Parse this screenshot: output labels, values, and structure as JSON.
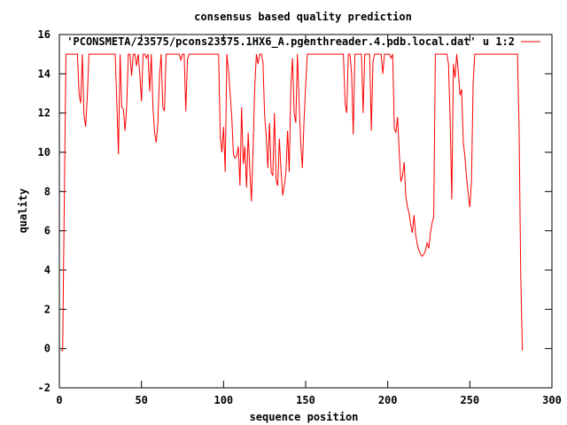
{
  "chart_data": {
    "type": "line",
    "title": "consensus based quality prediction",
    "xlabel": "sequence position",
    "ylabel": "quality",
    "xlim": [
      0,
      300
    ],
    "ylim": [
      -2,
      16
    ],
    "x_ticks": [
      "0",
      "50",
      "100",
      "150",
      "200",
      "250",
      "300"
    ],
    "y_ticks": [
      "-2",
      "0",
      "2",
      "4",
      "6",
      "8",
      "10",
      "12",
      "14",
      "16"
    ],
    "grid": false,
    "legend_position": "top-right",
    "series": [
      {
        "name": "'PCONSMETA/23575/pcons23575.1HX6_A.pgenthreader.4.pdb.local.dat' u 1:2",
        "color": "#ff0000",
        "points": [
          [
            1,
            -0.1
          ],
          [
            2,
            -0.1
          ],
          [
            3,
            7.5
          ],
          [
            4,
            15
          ],
          [
            5,
            15
          ],
          [
            6,
            15
          ],
          [
            7,
            15
          ],
          [
            8,
            15
          ],
          [
            9,
            15
          ],
          [
            10,
            15
          ],
          [
            11,
            15
          ],
          [
            12,
            13.0
          ],
          [
            13,
            12.5
          ],
          [
            14,
            15
          ],
          [
            15,
            11.9
          ],
          [
            16,
            11.3
          ],
          [
            17,
            12.8
          ],
          [
            18,
            15
          ],
          [
            19,
            15
          ],
          [
            20,
            15
          ],
          [
            21,
            15
          ],
          [
            22,
            15
          ],
          [
            23,
            15
          ],
          [
            24,
            15
          ],
          [
            25,
            15
          ],
          [
            26,
            15
          ],
          [
            27,
            15
          ],
          [
            28,
            15
          ],
          [
            29,
            15
          ],
          [
            30,
            15
          ],
          [
            31,
            15
          ],
          [
            32,
            15
          ],
          [
            33,
            15
          ],
          [
            34,
            15
          ],
          [
            35,
            12.5
          ],
          [
            36,
            9.9
          ],
          [
            37,
            15
          ],
          [
            38,
            12.3
          ],
          [
            39,
            12.2
          ],
          [
            40,
            11.1
          ],
          [
            41,
            12.3
          ],
          [
            42,
            15
          ],
          [
            43,
            15
          ],
          [
            44,
            13.9
          ],
          [
            45,
            15
          ],
          [
            46,
            15
          ],
          [
            47,
            14.4
          ],
          [
            48,
            15
          ],
          [
            49,
            14.0
          ],
          [
            50,
            12.6
          ],
          [
            51,
            15
          ],
          [
            52,
            15
          ],
          [
            53,
            14.8
          ],
          [
            54,
            15
          ],
          [
            55,
            13.1
          ],
          [
            56,
            15
          ],
          [
            57,
            12.3
          ],
          [
            58,
            11.0
          ],
          [
            59,
            10.5
          ],
          [
            60,
            11.5
          ],
          [
            61,
            13.9
          ],
          [
            62,
            15
          ],
          [
            63,
            12.3
          ],
          [
            64,
            12.1
          ],
          [
            65,
            15
          ],
          [
            66,
            15
          ],
          [
            67,
            15
          ],
          [
            68,
            15
          ],
          [
            69,
            15
          ],
          [
            70,
            15
          ],
          [
            71,
            15
          ],
          [
            72,
            15
          ],
          [
            73,
            15
          ],
          [
            74,
            14.7
          ],
          [
            75,
            15
          ],
          [
            76,
            15
          ],
          [
            77,
            12.1
          ],
          [
            78,
            14.7
          ],
          [
            79,
            15
          ],
          [
            80,
            15
          ],
          [
            81,
            15
          ],
          [
            82,
            15
          ],
          [
            83,
            15
          ],
          [
            84,
            15
          ],
          [
            85,
            15
          ],
          [
            86,
            15
          ],
          [
            87,
            15
          ],
          [
            88,
            15
          ],
          [
            89,
            15
          ],
          [
            90,
            15
          ],
          [
            91,
            15
          ],
          [
            92,
            15
          ],
          [
            93,
            15
          ],
          [
            94,
            15
          ],
          [
            95,
            15
          ],
          [
            96,
            15
          ],
          [
            97,
            15
          ],
          [
            98,
            10.8
          ],
          [
            99,
            10.0
          ],
          [
            100,
            11.3
          ],
          [
            101,
            9.0
          ],
          [
            102,
            15
          ],
          [
            103,
            14.2
          ],
          [
            104,
            13.0
          ],
          [
            105,
            11.8
          ],
          [
            106,
            9.9
          ],
          [
            107,
            9.7
          ],
          [
            108,
            9.8
          ],
          [
            109,
            10.3
          ],
          [
            110,
            8.3
          ],
          [
            111,
            12.3
          ],
          [
            112,
            9.4
          ],
          [
            113,
            10.3
          ],
          [
            114,
            8.2
          ],
          [
            115,
            11.0
          ],
          [
            116,
            9.1
          ],
          [
            117,
            7.5
          ],
          [
            118,
            10.2
          ],
          [
            119,
            13.3
          ],
          [
            120,
            15
          ],
          [
            121,
            14.5
          ],
          [
            122,
            15
          ],
          [
            123,
            15
          ],
          [
            124,
            14.6
          ],
          [
            125,
            11.9
          ],
          [
            126,
            10.8
          ],
          [
            127,
            9.2
          ],
          [
            128,
            11.5
          ],
          [
            129,
            9.0
          ],
          [
            130,
            8.8
          ],
          [
            131,
            12.0
          ],
          [
            132,
            8.6
          ],
          [
            133,
            8.3
          ],
          [
            134,
            10.7
          ],
          [
            135,
            9.1
          ],
          [
            136,
            7.8
          ],
          [
            137,
            8.3
          ],
          [
            138,
            9.0
          ],
          [
            139,
            11.1
          ],
          [
            140,
            9.0
          ],
          [
            141,
            13.4
          ],
          [
            142,
            14.8
          ],
          [
            143,
            12.0
          ],
          [
            144,
            11.5
          ],
          [
            145,
            15
          ],
          [
            146,
            12.6
          ],
          [
            147,
            10.5
          ],
          [
            148,
            9.2
          ],
          [
            149,
            11.6
          ],
          [
            150,
            13.4
          ],
          [
            151,
            15
          ],
          [
            152,
            15
          ],
          [
            153,
            15
          ],
          [
            154,
            15
          ],
          [
            155,
            15
          ],
          [
            156,
            15
          ],
          [
            157,
            15
          ],
          [
            158,
            15
          ],
          [
            159,
            15
          ],
          [
            160,
            15
          ],
          [
            161,
            15
          ],
          [
            162,
            15
          ],
          [
            163,
            15
          ],
          [
            164,
            15
          ],
          [
            165,
            15
          ],
          [
            166,
            15
          ],
          [
            167,
            15
          ],
          [
            168,
            15
          ],
          [
            169,
            15
          ],
          [
            170,
            15
          ],
          [
            171,
            15
          ],
          [
            172,
            15
          ],
          [
            173,
            15
          ],
          [
            174,
            12.5
          ],
          [
            175,
            12.0
          ],
          [
            176,
            15
          ],
          [
            177,
            15
          ],
          [
            178,
            14.0
          ],
          [
            179,
            10.9
          ],
          [
            180,
            15
          ],
          [
            181,
            15
          ],
          [
            182,
            15
          ],
          [
            183,
            15
          ],
          [
            184,
            15
          ],
          [
            185,
            12.0
          ],
          [
            186,
            15
          ],
          [
            187,
            15
          ],
          [
            188,
            15
          ],
          [
            189,
            15
          ],
          [
            190,
            11.1
          ],
          [
            191,
            14.6
          ],
          [
            192,
            15
          ],
          [
            193,
            15
          ],
          [
            194,
            15
          ],
          [
            195,
            15
          ],
          [
            196,
            15
          ],
          [
            197,
            14.0
          ],
          [
            198,
            15
          ],
          [
            199,
            15
          ],
          [
            200,
            15
          ],
          [
            201,
            15
          ],
          [
            202,
            14.8
          ],
          [
            203,
            15
          ],
          [
            204,
            11.2
          ],
          [
            205,
            11.0
          ],
          [
            206,
            11.8
          ],
          [
            207,
            10.0
          ],
          [
            208,
            8.5
          ],
          [
            209,
            8.8
          ],
          [
            210,
            9.5
          ],
          [
            211,
            7.8
          ],
          [
            212,
            7.2
          ],
          [
            213,
            6.9
          ],
          [
            214,
            6.3
          ],
          [
            215,
            5.9
          ],
          [
            216,
            6.8
          ],
          [
            217,
            5.8
          ],
          [
            218,
            5.3
          ],
          [
            219,
            5.0
          ],
          [
            220,
            4.8
          ],
          [
            221,
            4.7
          ],
          [
            222,
            4.8
          ],
          [
            223,
            5.0
          ],
          [
            224,
            5.4
          ],
          [
            225,
            5.1
          ],
          [
            226,
            5.9
          ],
          [
            227,
            6.4
          ],
          [
            228,
            6.7
          ],
          [
            229,
            15
          ],
          [
            230,
            15
          ],
          [
            231,
            15
          ],
          [
            232,
            15
          ],
          [
            233,
            15
          ],
          [
            234,
            15
          ],
          [
            235,
            15
          ],
          [
            236,
            15
          ],
          [
            237,
            14.5
          ],
          [
            238,
            11.7
          ],
          [
            239,
            7.6
          ],
          [
            240,
            14.5
          ],
          [
            241,
            13.8
          ],
          [
            242,
            15
          ],
          [
            243,
            14.1
          ],
          [
            244,
            12.9
          ],
          [
            245,
            13.2
          ],
          [
            246,
            10.5
          ],
          [
            247,
            9.8
          ],
          [
            248,
            8.7
          ],
          [
            249,
            7.9
          ],
          [
            250,
            7.2
          ],
          [
            251,
            8.5
          ],
          [
            252,
            13.5
          ],
          [
            253,
            15
          ],
          [
            254,
            15
          ],
          [
            255,
            15
          ],
          [
            256,
            15
          ],
          [
            257,
            15
          ],
          [
            258,
            15
          ],
          [
            259,
            15
          ],
          [
            260,
            15
          ],
          [
            261,
            15
          ],
          [
            262,
            15
          ],
          [
            263,
            15
          ],
          [
            264,
            15
          ],
          [
            265,
            15
          ],
          [
            266,
            15
          ],
          [
            267,
            15
          ],
          [
            268,
            15
          ],
          [
            269,
            15
          ],
          [
            270,
            15
          ],
          [
            271,
            15
          ],
          [
            272,
            15
          ],
          [
            273,
            15
          ],
          [
            274,
            15
          ],
          [
            275,
            15
          ],
          [
            276,
            15
          ],
          [
            277,
            15
          ],
          [
            278,
            15
          ],
          [
            279,
            15
          ],
          [
            280,
            11.2
          ],
          [
            281,
            3.7
          ],
          [
            282,
            -0.1
          ]
        ]
      }
    ]
  }
}
